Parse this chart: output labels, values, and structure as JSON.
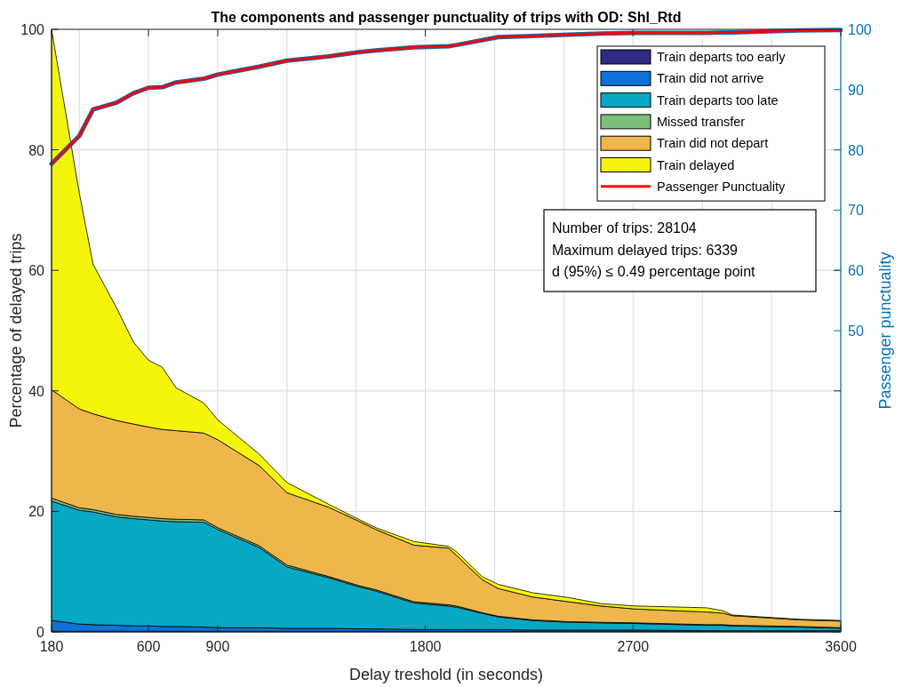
{
  "chart_data": {
    "type": "area",
    "stacked": true,
    "title": "The components and passenger punctuality of trips with OD: Shl_Rtd",
    "xlabel": "Delay treshold (in seconds)",
    "ylabel": "Percentage of delayed trips",
    "y2label": "Passenger punctuality",
    "x": [
      180,
      300,
      360,
      460,
      535,
      600,
      660,
      720,
      840,
      900,
      1080,
      1200,
      1380,
      1510,
      1585,
      1750,
      1900,
      1935,
      2045,
      2115,
      2265,
      2420,
      2560,
      2710,
      3020,
      3090,
      3130,
      3420,
      3600
    ],
    "series": [
      {
        "name": "Train departs too early",
        "color": "#2e2a86",
        "values": [
          0.1,
          0.1,
          0.1,
          0.1,
          0.1,
          0.1,
          0.1,
          0.1,
          0.1,
          0.1,
          0.1,
          0.1,
          0.1,
          0.1,
          0.1,
          0.1,
          0.1,
          0.1,
          0.1,
          0.1,
          0.1,
          0.1,
          0.1,
          0.1,
          0.1,
          0.1,
          0.1,
          0.1,
          0.1
        ]
      },
      {
        "name": "Train did not arrive",
        "color": "#0e72d8",
        "values": [
          1.8,
          1.2,
          1.1,
          1.0,
          0.9,
          0.9,
          0.8,
          0.8,
          0.7,
          0.6,
          0.6,
          0.5,
          0.5,
          0.4,
          0.4,
          0.3,
          0.3,
          0.3,
          0.3,
          0.3,
          0.2,
          0.2,
          0.2,
          0.2,
          0.1,
          0.1,
          0.1,
          0.1,
          0.1
        ]
      },
      {
        "name": "Train departs too late",
        "color": "#06a8c4",
        "values": [
          19.8,
          18.9,
          18.7,
          18.0,
          17.8,
          17.6,
          17.5,
          17.4,
          17.4,
          16.3,
          13.3,
          10.2,
          8.4,
          7.0,
          6.3,
          4.4,
          3.9,
          3.7,
          2.7,
          2.1,
          1.6,
          1.3,
          1.2,
          1.1,
          0.9,
          0.9,
          0.8,
          0.6,
          0.4
        ]
      },
      {
        "name": "Missed transfer",
        "color": "#7bbf7a",
        "values": [
          0.5,
          0.4,
          0.4,
          0.4,
          0.4,
          0.4,
          0.4,
          0.4,
          0.4,
          0.3,
          0.3,
          0.3,
          0.2,
          0.2,
          0.2,
          0.2,
          0.2,
          0.2,
          0.1,
          0.1,
          0.1,
          0.1,
          0.1,
          0.1,
          0.1,
          0.1,
          0.1,
          0.1,
          0.1
        ]
      },
      {
        "name": "Train did not depart",
        "color": "#efb74b",
        "values": [
          18.0,
          16.4,
          15.9,
          15.6,
          15.3,
          15.0,
          14.8,
          14.7,
          14.4,
          14.6,
          13.3,
          12.0,
          11.5,
          10.7,
          10.0,
          9.4,
          9.4,
          8.4,
          5.5,
          4.6,
          3.8,
          3.3,
          2.7,
          2.3,
          2.1,
          1.9,
          1.6,
          1.1,
          1.1
        ]
      },
      {
        "name": "Train delayed",
        "color": "#f5f50c",
        "values": [
          59.8,
          35.9,
          24.8,
          18.8,
          13.6,
          11.1,
          10.3,
          7.1,
          5.0,
          3.3,
          1.9,
          1.7,
          0.5,
          0.3,
          0.3,
          0.6,
          0.3,
          0.6,
          0.5,
          0.7,
          0.7,
          0.7,
          0.4,
          0.5,
          0.7,
          0.4,
          0.1,
          0.1,
          0.1
        ]
      },
      {
        "name": "Passenger Punctuality",
        "type": "line",
        "axis": "y2",
        "color": "#ff0000",
        "values": [
          77.7,
          82.3,
          86.7,
          87.8,
          89.4,
          90.3,
          90.4,
          91.2,
          91.8,
          92.5,
          93.8,
          94.8,
          95.5,
          96.2,
          96.5,
          97.0,
          97.2,
          97.4,
          98.2,
          98.7,
          98.9,
          99.1,
          99.3,
          99.4,
          99.4,
          99.5,
          99.5,
          99.8,
          99.9
        ]
      }
    ],
    "xlim": [
      180,
      3600
    ],
    "xticks": [
      180,
      {
        "value": 300,
        "label": null
      },
      600,
      900,
      {
        "value": 1200,
        "label": null
      },
      {
        "value": 1500,
        "label": null
      },
      1800,
      {
        "value": 2100,
        "label": null
      },
      {
        "value": 2400,
        "label": null
      },
      2700,
      {
        "value": 3000,
        "label": null
      },
      {
        "value": 3300,
        "label": null
      },
      3600
    ],
    "ylim": [
      0,
      100
    ],
    "yticks": [
      0,
      20,
      40,
      60,
      80,
      100
    ],
    "y2lim": [
      0,
      100
    ],
    "y2ticks": [
      50,
      60,
      70,
      80,
      90,
      100
    ],
    "grid": true,
    "legend": "top right",
    "annotations": [
      "Number of trips: 28104",
      "Maximum delayed trips: 6339",
      "d (95%) ≤ 0.49 percentage point"
    ]
  }
}
